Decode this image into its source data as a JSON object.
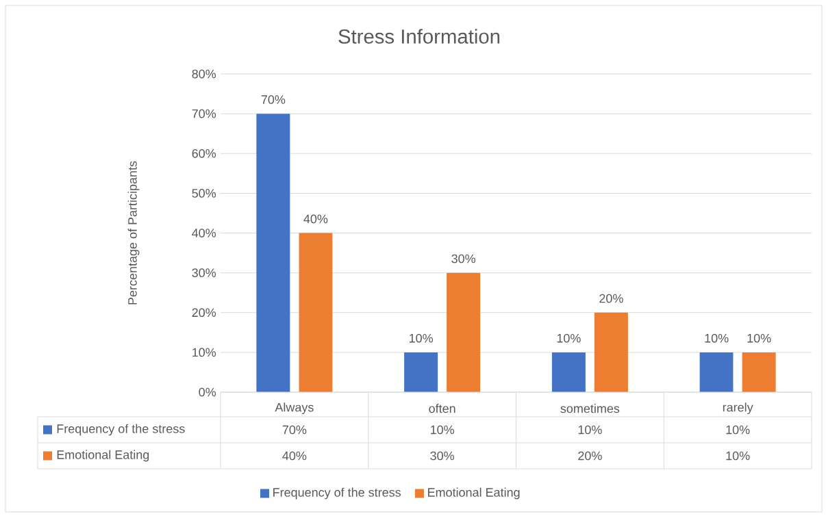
{
  "chart_data": {
    "type": "bar",
    "title": "Stress Information",
    "ylabel": "Percentage of Participants",
    "categories": [
      "Always",
      "often",
      "sometimes",
      "rarely"
    ],
    "series": [
      {
        "name": "Frequency of the stress",
        "color": "#4472c4",
        "values": [
          70,
          10,
          10,
          10
        ],
        "value_labels": [
          "70%",
          "10%",
          "10%",
          "10%"
        ]
      },
      {
        "name": "Emotional Eating",
        "color": "#ed7d31",
        "values": [
          40,
          30,
          20,
          10
        ],
        "value_labels": [
          "40%",
          "30%",
          "20%",
          "10%"
        ]
      }
    ],
    "ylim": [
      0,
      80
    ],
    "yticks": [
      {
        "value": 0,
        "label": "0%"
      },
      {
        "value": 10,
        "label": "10%"
      },
      {
        "value": 20,
        "label": "20%"
      },
      {
        "value": 30,
        "label": "30%"
      },
      {
        "value": 40,
        "label": "40%"
      },
      {
        "value": 50,
        "label": "50%"
      },
      {
        "value": 60,
        "label": "60%"
      },
      {
        "value": 70,
        "label": "70%"
      },
      {
        "value": 80,
        "label": "80%"
      }
    ],
    "grid": "y",
    "legend": "bottom"
  }
}
